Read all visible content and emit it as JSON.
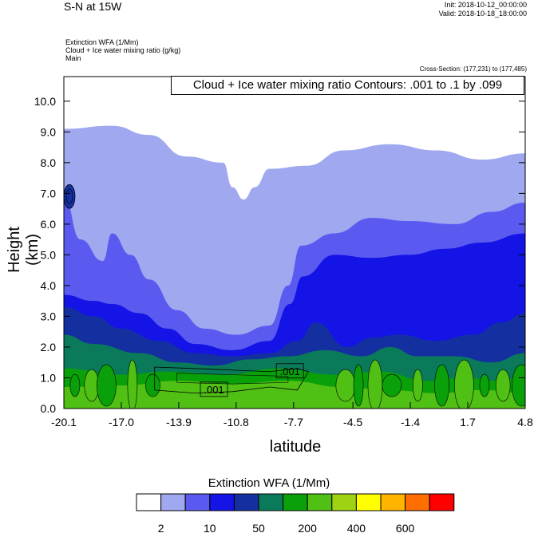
{
  "header": {
    "title": "S-N at 15W",
    "init": "Init: 2018-10-12_00:00:00",
    "valid": "Valid: 2018-10-18_18:00:00",
    "field_line1": "Extinction WFA   (1/Mm)",
    "field_line2": "Cloud + Ice water mixing ratio   (g/kg)",
    "field_line3": "Main",
    "cross_section": "Cross-Section: (177,231) to (177,485)",
    "contour_info": "Cloud + Ice water mixing ratio Contours: .001 to .1 by .099"
  },
  "chart_data": {
    "type": "heatmap",
    "xlabel": "latitude",
    "ylabel": "Height (km)",
    "xlim": [
      -20.1,
      4.8
    ],
    "ylim": [
      0.0,
      10.8
    ],
    "x_ticks": [
      "-20.1",
      "-17.0",
      "-13.9",
      "-10.8",
      "-7.7",
      "-4.5",
      "-1.4",
      "1.7",
      "4.8"
    ],
    "y_ticks": [
      "0.0",
      "1.0",
      "2.0",
      "3.0",
      "4.0",
      "5.0",
      "6.0",
      "7.0",
      "8.0",
      "9.0",
      "10.0"
    ],
    "contour_labels": [
      ".001",
      ".001"
    ],
    "colorbar": {
      "title": "Extinction WFA  (1/Mm)",
      "colors": [
        "#ffffff",
        "#a0a8f0",
        "#5a5af0",
        "#1414e6",
        "#1430a0",
        "#0a7a5a",
        "#0aa00a",
        "#50c014",
        "#a0d214",
        "#ffff00",
        "#ffb400",
        "#ff6e00",
        "#ff0000"
      ],
      "labels": [
        "2",
        "10",
        "50",
        "200",
        "400",
        "600"
      ]
    },
    "layers": [
      {
        "color": "#a0a8f0",
        "tops": [
          [
            -20.1,
            9.1
          ],
          [
            -17.5,
            9.2
          ],
          [
            -15.5,
            8.9
          ],
          [
            -13.5,
            8.2
          ],
          [
            -11.5,
            8.0
          ],
          [
            -11.0,
            7.2
          ],
          [
            -10.4,
            6.8
          ],
          [
            -9.8,
            7.2
          ],
          [
            -9.0,
            7.8
          ],
          [
            -7.0,
            7.9
          ],
          [
            -5.0,
            8.4
          ],
          [
            -2.5,
            8.6
          ],
          [
            0,
            8.4
          ],
          [
            2.5,
            8.1
          ],
          [
            4.8,
            8.3
          ]
        ]
      },
      {
        "color": "#5a5af0",
        "tops": [
          [
            -20.1,
            6.9
          ],
          [
            -19.2,
            5.5
          ],
          [
            -18.0,
            4.8
          ],
          [
            -17.5,
            5.7
          ],
          [
            -16.5,
            5.0
          ],
          [
            -15.5,
            4.2
          ],
          [
            -14.0,
            3.2
          ],
          [
            -12.5,
            2.6
          ],
          [
            -10.8,
            2.4
          ],
          [
            -9.0,
            2.7
          ],
          [
            -8.0,
            4.0
          ],
          [
            -7.3,
            5.3
          ],
          [
            -5.5,
            5.7
          ],
          [
            -3.5,
            6.2
          ],
          [
            -1.5,
            6.1
          ],
          [
            1.0,
            6.0
          ],
          [
            3.0,
            6.4
          ],
          [
            4.8,
            6.7
          ]
        ]
      },
      {
        "color": "#1414e6",
        "tops": [
          [
            -20.1,
            3.7
          ],
          [
            -18.5,
            3.5
          ],
          [
            -17.5,
            3.4
          ],
          [
            -16.0,
            3.1
          ],
          [
            -14.5,
            2.6
          ],
          [
            -13.0,
            2.1
          ],
          [
            -11.0,
            1.9
          ],
          [
            -9.0,
            2.2
          ],
          [
            -7.9,
            3.4
          ],
          [
            -7.2,
            4.3
          ],
          [
            -5.5,
            5.0
          ],
          [
            -3.5,
            4.9
          ],
          [
            -1.5,
            5.0
          ],
          [
            0.5,
            5.2
          ],
          [
            2.5,
            5.4
          ],
          [
            4.8,
            5.7
          ]
        ]
      },
      {
        "color": "#1430a0",
        "tops": [
          [
            -20.1,
            3.3
          ],
          [
            -18.5,
            3.0
          ],
          [
            -17.0,
            2.6
          ],
          [
            -15.0,
            2.2
          ],
          [
            -13.0,
            1.8
          ],
          [
            -11.0,
            1.7
          ],
          [
            -9.0,
            1.8
          ],
          [
            -7.5,
            2.2
          ],
          [
            -6.5,
            2.8
          ],
          [
            -4.8,
            2.0
          ],
          [
            -3.5,
            2.3
          ],
          [
            -2.0,
            2.4
          ],
          [
            0.0,
            2.2
          ],
          [
            2.0,
            2.4
          ],
          [
            3.5,
            2.8
          ],
          [
            4.8,
            3.1
          ]
        ]
      },
      {
        "color": "#0a7a5a",
        "tops": [
          [
            -20.1,
            2.4
          ],
          [
            -18.5,
            2.1
          ],
          [
            -16.0,
            1.8
          ],
          [
            -14.0,
            1.5
          ],
          [
            -12.0,
            1.4
          ],
          [
            -10.0,
            1.6
          ],
          [
            -8.0,
            1.7
          ],
          [
            -6.0,
            1.9
          ],
          [
            -4.0,
            1.7
          ],
          [
            -2.5,
            2.0
          ],
          [
            -1.0,
            1.7
          ],
          [
            1.0,
            1.7
          ],
          [
            3.0,
            1.5
          ],
          [
            4.8,
            1.8
          ]
        ]
      },
      {
        "color": "#0aa00a",
        "tops": [
          [
            -20.1,
            1.3
          ],
          [
            -17.0,
            1.1
          ],
          [
            -14.5,
            1.2
          ],
          [
            -11.5,
            1.1
          ],
          [
            -8.5,
            1.3
          ],
          [
            -5.5,
            1.1
          ],
          [
            -3.0,
            1.2
          ],
          [
            -0.5,
            0.9
          ],
          [
            1.5,
            1.0
          ],
          [
            3.5,
            0.9
          ],
          [
            4.8,
            1.1
          ]
        ]
      },
      {
        "color": "#50c014",
        "tops": [
          [
            -20.1,
            0.7
          ],
          [
            -17.0,
            0.75
          ],
          [
            -14.0,
            0.9
          ],
          [
            -11.0,
            0.8
          ],
          [
            -8.0,
            0.9
          ],
          [
            -5.0,
            0.7
          ],
          [
            -2.5,
            0.6
          ],
          [
            0.0,
            0.5
          ],
          [
            2.5,
            0.6
          ],
          [
            4.8,
            0.5
          ]
        ]
      }
    ]
  }
}
